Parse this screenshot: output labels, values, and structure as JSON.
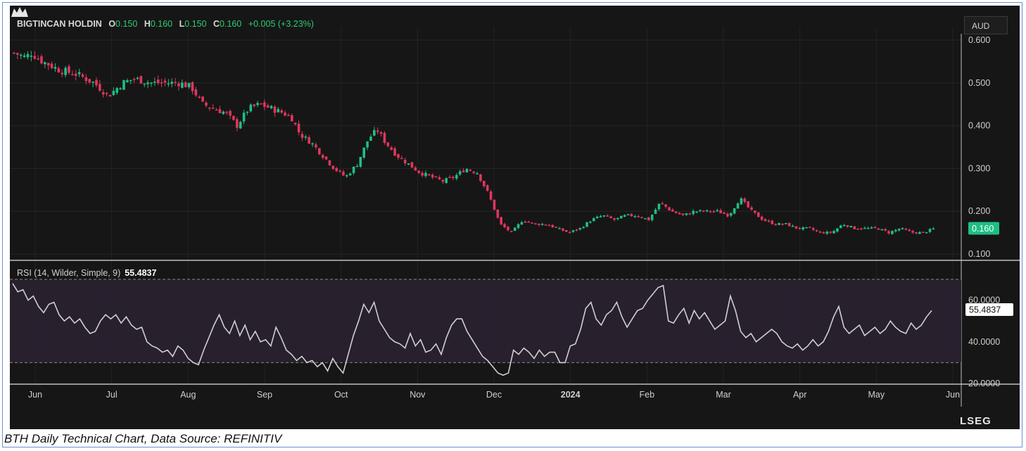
{
  "header": {
    "symbol": "BIGTINCAN HOLDIN",
    "open_label": "O",
    "open": "0.150",
    "high_label": "H",
    "high": "0.160",
    "low_label": "L",
    "low": "0.150",
    "close_label": "C",
    "close": "0.160",
    "change": "+0.005 (+3.23%)",
    "currency": "AUD"
  },
  "rsi": {
    "label": "RSI (14, Wilder, Simple, 9)",
    "value": "55.4837"
  },
  "caption": "BTH Daily Technical Chart, Data Source: REFINITIV",
  "brand": "LSEG",
  "colors": {
    "up": "#1fbf83",
    "down": "#e0365c",
    "background": "#161616",
    "rsi_line": "#cfcfcf",
    "rsi_band": "#2a2130"
  },
  "chart_data": [
    {
      "type": "candlestick",
      "title": "BIGTINCAN HOLDIN",
      "currency": "AUD",
      "x_ticks": [
        "Jun",
        "Jul",
        "Aug",
        "Sep",
        "Oct",
        "Nov",
        "Dec",
        "2024",
        "Feb",
        "Mar",
        "Apr",
        "May",
        "Jun"
      ],
      "y_ticks": [
        "0.600",
        "0.500",
        "0.400",
        "0.300",
        "0.200",
        "0.100"
      ],
      "ylim": [
        0.1,
        0.6
      ],
      "last_price_label": "0.160",
      "close_path": [
        [
          0,
          0.57
        ],
        [
          4,
          0.56
        ],
        [
          6,
          0.57
        ],
        [
          10,
          0.55
        ],
        [
          16,
          0.53
        ],
        [
          22,
          0.52
        ],
        [
          28,
          0.5
        ],
        [
          33,
          0.47
        ],
        [
          38,
          0.5
        ],
        [
          42,
          0.51
        ],
        [
          48,
          0.5
        ],
        [
          52,
          0.5
        ],
        [
          55,
          0.5
        ],
        [
          58,
          0.5
        ],
        [
          62,
          0.49
        ],
        [
          66,
          0.45
        ],
        [
          70,
          0.44
        ],
        [
          74,
          0.43
        ],
        [
          78,
          0.4
        ],
        [
          82,
          0.44
        ],
        [
          86,
          0.45
        ],
        [
          90,
          0.44
        ],
        [
          94,
          0.43
        ],
        [
          97,
          0.42
        ],
        [
          100,
          0.38
        ],
        [
          104,
          0.36
        ],
        [
          108,
          0.33
        ],
        [
          112,
          0.3
        ],
        [
          116,
          0.28
        ],
        [
          120,
          0.31
        ],
        [
          124,
          0.37
        ],
        [
          127,
          0.39
        ],
        [
          130,
          0.36
        ],
        [
          134,
          0.33
        ],
        [
          138,
          0.31
        ],
        [
          142,
          0.29
        ],
        [
          146,
          0.28
        ],
        [
          150,
          0.27
        ],
        [
          154,
          0.28
        ],
        [
          158,
          0.3
        ],
        [
          162,
          0.29
        ],
        [
          166,
          0.24
        ],
        [
          170,
          0.17
        ],
        [
          174,
          0.15
        ],
        [
          178,
          0.18
        ],
        [
          182,
          0.17
        ],
        [
          186,
          0.17
        ],
        [
          190,
          0.16
        ],
        [
          194,
          0.15
        ],
        [
          198,
          0.16
        ],
        [
          202,
          0.18
        ],
        [
          206,
          0.19
        ],
        [
          210,
          0.18
        ],
        [
          214,
          0.19
        ],
        [
          218,
          0.19
        ],
        [
          222,
          0.18
        ],
        [
          226,
          0.22
        ],
        [
          230,
          0.2
        ],
        [
          234,
          0.19
        ],
        [
          238,
          0.2
        ],
        [
          242,
          0.2
        ],
        [
          246,
          0.2
        ],
        [
          250,
          0.19
        ],
        [
          254,
          0.23
        ],
        [
          258,
          0.2
        ],
        [
          262,
          0.18
        ],
        [
          266,
          0.17
        ],
        [
          270,
          0.17
        ],
        [
          274,
          0.16
        ],
        [
          278,
          0.16
        ],
        [
          282,
          0.15
        ],
        [
          286,
          0.15
        ],
        [
          290,
          0.17
        ],
        [
          294,
          0.16
        ],
        [
          298,
          0.16
        ],
        [
          302,
          0.16
        ],
        [
          306,
          0.15
        ],
        [
          310,
          0.16
        ],
        [
          314,
          0.15
        ],
        [
          318,
          0.15
        ],
        [
          322,
          0.16
        ]
      ]
    },
    {
      "type": "line",
      "title": "RSI (14, Wilder, Simple, 9)",
      "y_ticks": [
        "60.0000",
        "40.0000",
        "20.0000"
      ],
      "ylim": [
        20,
        70
      ],
      "band": [
        30,
        70
      ],
      "last_value_label": "55.4837",
      "values": [
        68,
        64,
        65,
        60,
        62,
        57,
        54,
        58,
        59,
        53,
        50,
        52,
        49,
        51,
        47,
        44,
        45,
        50,
        53,
        51,
        53,
        49,
        52,
        48,
        46,
        47,
        40,
        38,
        37,
        35,
        36,
        33,
        38,
        36,
        32,
        30,
        29,
        36,
        42,
        48,
        53,
        47,
        44,
        50,
        43,
        48,
        41,
        45,
        40,
        41,
        38,
        47,
        42,
        36,
        34,
        31,
        33,
        30,
        31,
        28,
        30,
        26,
        32,
        28,
        25,
        34,
        43,
        50,
        58,
        54,
        59,
        50,
        46,
        42,
        40,
        39,
        37,
        44,
        38,
        41,
        35,
        36,
        39,
        34,
        42,
        48,
        51,
        51,
        45,
        41,
        37,
        33,
        31,
        28,
        25,
        24,
        25,
        36,
        34,
        37,
        35,
        32,
        36,
        33,
        35,
        35,
        30,
        30,
        38,
        39,
        46,
        56,
        59,
        51,
        48,
        53,
        55,
        59,
        52,
        47,
        51,
        55,
        56,
        60,
        63,
        66,
        67,
        50,
        49,
        53,
        56,
        49,
        55,
        51,
        54,
        50,
        46,
        48,
        50,
        62,
        55,
        45,
        42,
        44,
        40,
        42,
        44,
        46,
        44,
        40,
        38,
        37,
        39,
        36,
        38,
        41,
        38,
        40,
        45,
        52,
        57,
        47,
        44,
        46,
        48,
        43,
        45,
        47,
        44,
        46,
        50,
        47,
        45,
        44,
        49,
        46,
        48,
        52,
        55
      ]
    }
  ]
}
